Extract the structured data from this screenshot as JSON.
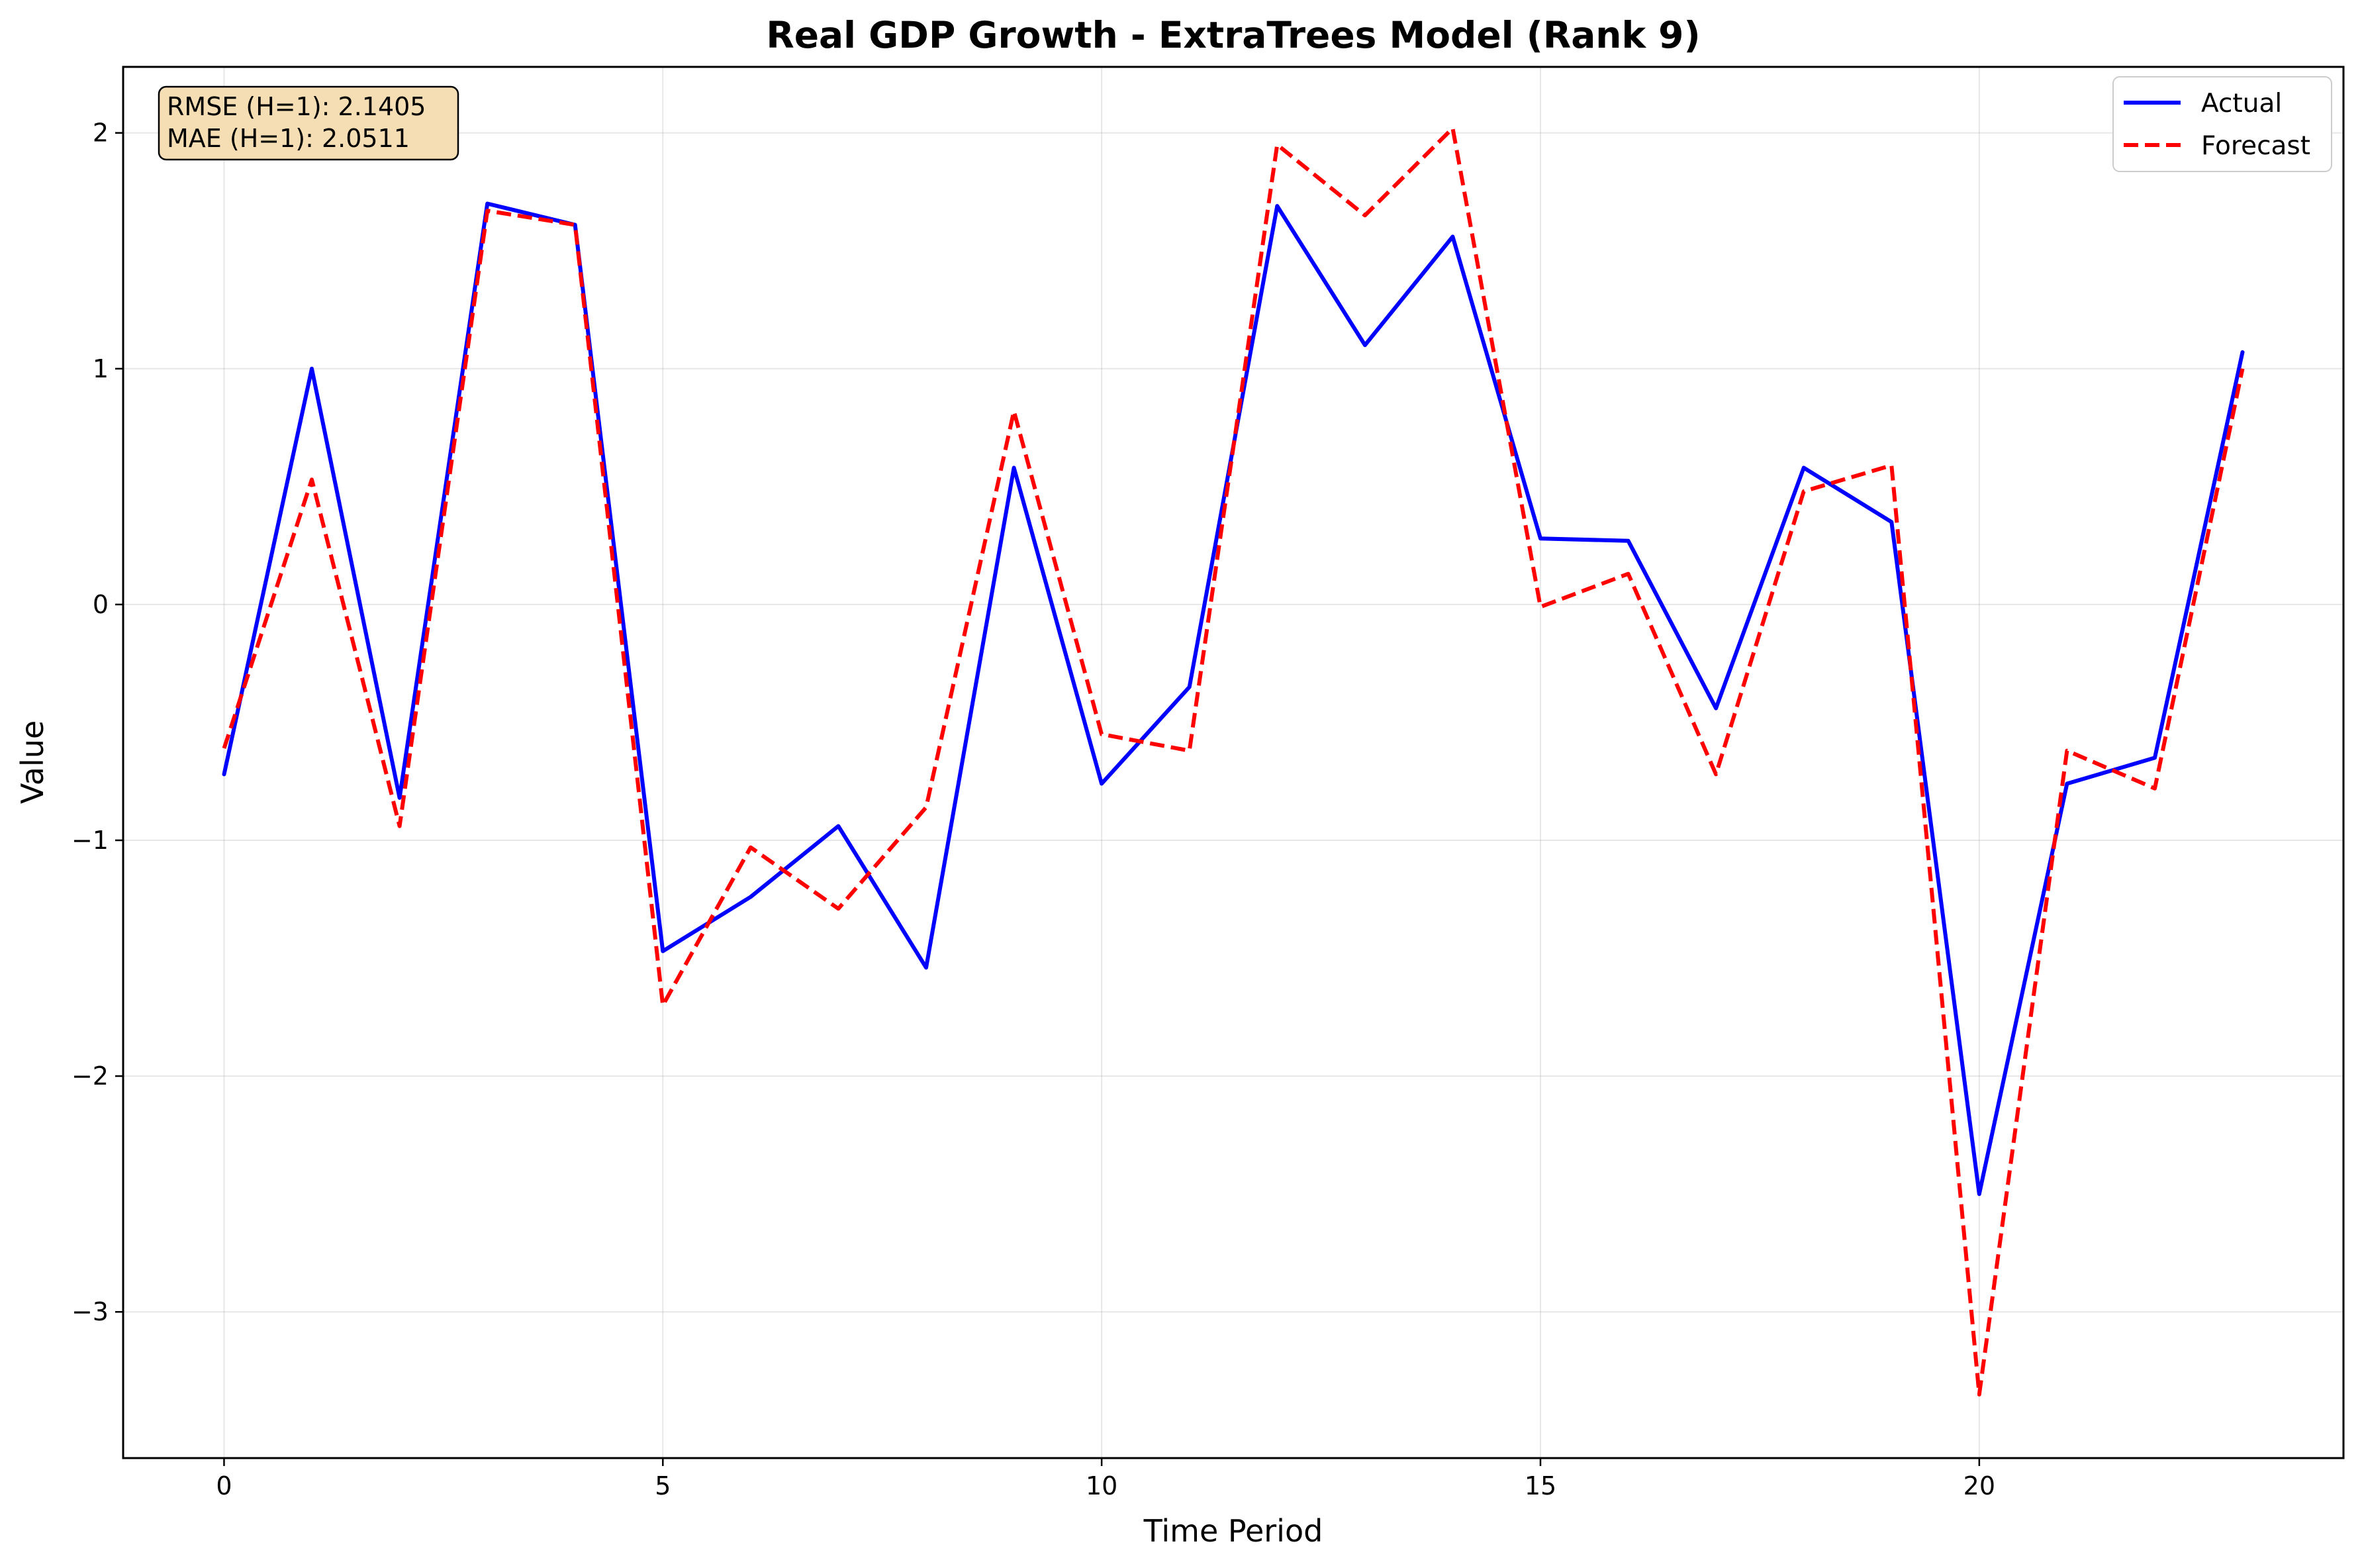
{
  "chart_data": {
    "type": "line",
    "title": "Real GDP Growth - ExtraTrees Model (Rank 9)",
    "xlabel": "Time Period",
    "ylabel": "Value",
    "xlim": [
      -1.15,
      24.15
    ],
    "ylim": [
      -3.62,
      2.28
    ],
    "xticks": [
      0,
      5,
      10,
      15,
      20
    ],
    "xtick_labels": [
      "0",
      "5",
      "10",
      "15",
      "20"
    ],
    "yticks": [
      2,
      1,
      0,
      -1,
      -2,
      -3
    ],
    "ytick_labels": [
      "2",
      "1",
      "0",
      "−1",
      "−2",
      "−3"
    ],
    "grid": true,
    "legend_position": "top-right",
    "x": [
      0,
      1,
      2,
      3,
      4,
      5,
      6,
      7,
      8,
      9,
      10,
      11,
      12,
      13,
      14,
      15,
      16,
      17,
      18,
      19,
      20,
      21,
      22,
      23
    ],
    "series": [
      {
        "name": "Actual",
        "color": "#0000ff",
        "style": "solid",
        "values": [
          -0.72,
          1.0,
          -0.82,
          1.7,
          1.61,
          -1.47,
          -1.24,
          -0.94,
          -1.54,
          0.58,
          -0.76,
          -0.35,
          1.69,
          1.1,
          1.56,
          0.28,
          0.27,
          -0.44,
          0.58,
          0.35,
          -2.5,
          -0.76,
          -0.65,
          1.07
        ]
      },
      {
        "name": "Forecast",
        "color": "#ff0000",
        "style": "dashed",
        "values": [
          -0.61,
          0.53,
          -0.94,
          1.67,
          1.61,
          -1.7,
          -1.03,
          -1.29,
          -0.86,
          0.82,
          -0.55,
          -0.62,
          1.95,
          1.65,
          2.02,
          -0.01,
          0.13,
          -0.72,
          0.48,
          0.59,
          -3.35,
          -0.62,
          -0.78,
          1.0
        ]
      }
    ],
    "annotation": {
      "lines": [
        "RMSE (H=1): 2.1405",
        "MAE (H=1): 2.0511"
      ],
      "box_color": "#f5deb3"
    }
  }
}
